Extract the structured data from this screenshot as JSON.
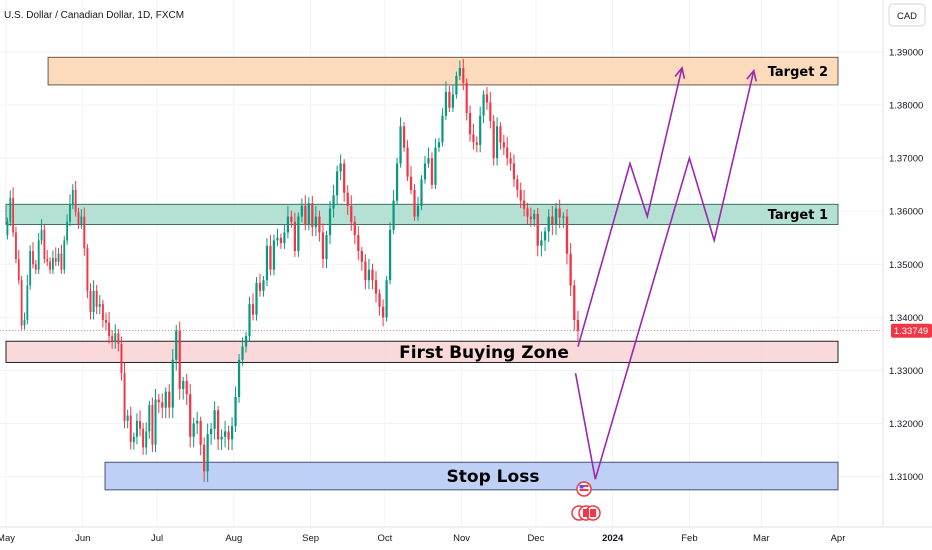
{
  "header": {
    "symbol_title": "U.S. Dollar / Canadian Dollar, 1D, FXCM",
    "currency_button": "CAD"
  },
  "price_tag": {
    "value": "1.33749",
    "color": "#f23645"
  },
  "colors": {
    "bull": "#089981",
    "bear": "#f23645",
    "path": "#9c27b0"
  },
  "chart_data": {
    "type": "candlestick",
    "title": "U.S. Dollar / Canadian Dollar, 1D, FXCM",
    "y_axis": {
      "unit": "CAD",
      "range": [
        1.3005,
        1.3998
      ],
      "ticks": [
        "1.39000",
        "1.38000",
        "1.37000",
        "1.36000",
        "1.35000",
        "1.34000",
        "1.33000",
        "1.32000",
        "1.31000"
      ]
    },
    "x_axis": {
      "range": [
        "2023-05-01",
        "2024-04-01"
      ],
      "ticks": [
        {
          "label": "May",
          "date": "2023-05-01"
        },
        {
          "label": "Jun",
          "date": "2023-06-01"
        },
        {
          "label": "Jul",
          "date": "2023-07-01"
        },
        {
          "label": "Aug",
          "date": "2023-08-01"
        },
        {
          "label": "Sep",
          "date": "2023-09-01"
        },
        {
          "label": "Oct",
          "date": "2023-10-01"
        },
        {
          "label": "Nov",
          "date": "2023-11-01"
        },
        {
          "label": "Dec",
          "date": "2023-12-01"
        },
        {
          "label": "2024",
          "date": "2024-01-01"
        },
        {
          "label": "Feb",
          "date": "2024-02-01"
        },
        {
          "label": "Mar",
          "date": "2024-03-01"
        },
        {
          "label": "Apr",
          "date": "2024-04-01"
        }
      ]
    },
    "last_price": 1.33749,
    "zones": [
      {
        "label": "Target 2",
        "from_date": "2023-05-18",
        "to_date": "2024-04-01",
        "low": 1.3838,
        "high": 1.389,
        "fill": "#fbd3b0",
        "stroke": "#6b5a4a"
      },
      {
        "label": "Target 1",
        "from_date": "2023-05-01",
        "to_date": "2024-04-01",
        "low": 1.3575,
        "high": 1.3613,
        "fill": "#a8dccd",
        "stroke": "#3f6f63"
      },
      {
        "label": "First Buying Zone",
        "from_date": "2023-05-01",
        "to_date": "2024-04-01",
        "low": 1.3315,
        "high": 1.3355,
        "fill": "#f9d2d4",
        "stroke": "#222222"
      },
      {
        "label": "Stop Loss",
        "from_date": "2023-06-10",
        "to_date": "2024-04-01",
        "low": 1.3075,
        "high": 1.3127,
        "fill": "#b3c8f5",
        "stroke": "#45507a"
      }
    ],
    "projections": [
      {
        "name": "path-1",
        "points": [
          {
            "date": "2023-12-18",
            "price": 1.3345
          },
          {
            "date": "2024-01-08",
            "price": 1.369
          },
          {
            "date": "2024-01-15",
            "price": 1.359
          },
          {
            "date": "2024-01-29",
            "price": 1.387
          }
        ]
      },
      {
        "name": "path-2",
        "points": [
          {
            "date": "2023-12-17",
            "price": 1.3295
          },
          {
            "date": "2023-12-25",
            "price": 1.3095
          },
          {
            "date": "2024-02-01",
            "price": 1.37
          },
          {
            "date": "2024-02-11",
            "price": 1.3545
          },
          {
            "date": "2024-02-27",
            "price": 1.3865
          }
        ]
      }
    ],
    "candles_by_month": [
      {
        "label": "May",
        "closes": [
          1.358,
          1.3625,
          1.356,
          1.351,
          1.347,
          1.3385,
          1.3395,
          1.346,
          1.3525,
          1.35,
          1.349,
          1.3545,
          1.3565,
          1.351,
          1.3505,
          1.349,
          1.3512,
          1.3505,
          1.352,
          1.349,
          1.3545,
          1.358,
          1.3612,
          1.364,
          1.3598,
          1.3575,
          1.359
        ]
      },
      {
        "label": "Jun",
        "closes": [
          1.353,
          1.345,
          1.341,
          1.345,
          1.342,
          1.3425,
          1.3395,
          1.339,
          1.3365,
          1.3355,
          1.337,
          1.335,
          1.3295,
          1.3205,
          1.3215,
          1.3165,
          1.3175,
          1.3205,
          1.319,
          1.3155,
          1.3185,
          1.3235,
          1.316,
          1.3245
        ]
      },
      {
        "label": "Jul",
        "closes": [
          1.324,
          1.323,
          1.326,
          1.323,
          1.332,
          1.3375,
          1.3265,
          1.328,
          1.3255,
          1.3175,
          1.32,
          1.3205,
          1.316,
          1.311,
          1.318,
          1.319,
          1.3225,
          1.317,
          1.3175,
          1.3185,
          1.317,
          1.3195
        ]
      },
      {
        "label": "Aug",
        "closes": [
          1.325,
          1.332,
          1.3345,
          1.3365,
          1.3425,
          1.3405,
          1.3465,
          1.345,
          1.347,
          1.3535,
          1.349,
          1.3545,
          1.355,
          1.354,
          1.356,
          1.359,
          1.358,
          1.3525,
          1.359,
          1.361,
          1.3575,
          1.3615
        ]
      },
      {
        "label": "Sep",
        "closes": [
          1.357,
          1.359,
          1.356,
          1.351,
          1.3555,
          1.3605,
          1.363,
          1.3675,
          1.369,
          1.3635,
          1.361,
          1.358,
          1.3555,
          1.3525,
          1.3505,
          1.347,
          1.349,
          1.347,
          1.3445,
          1.342,
          1.34
        ]
      },
      {
        "label": "Oct",
        "closes": [
          1.347,
          1.3565,
          1.362,
          1.369,
          1.376,
          1.372,
          1.3665,
          1.364,
          1.359,
          1.361,
          1.366,
          1.369,
          1.37,
          1.365,
          1.372,
          1.373,
          1.378,
          1.3825,
          1.3795,
          1.382,
          1.3855,
          1.387
        ]
      },
      {
        "label": "Nov",
        "closes": [
          1.3842,
          1.3785,
          1.3745,
          1.373,
          1.3725,
          1.378,
          1.382,
          1.3805,
          1.377,
          1.37,
          1.376,
          1.373,
          1.372,
          1.37,
          1.369,
          1.366,
          1.364,
          1.362,
          1.3605,
          1.359,
          1.3585,
          1.3595
        ]
      },
      {
        "label": "Dec",
        "closes": [
          1.3535,
          1.3545,
          1.3562,
          1.359,
          1.3575,
          1.3605,
          1.3588,
          1.359,
          1.352,
          1.346,
          1.3395,
          1.3375
        ]
      }
    ]
  }
}
